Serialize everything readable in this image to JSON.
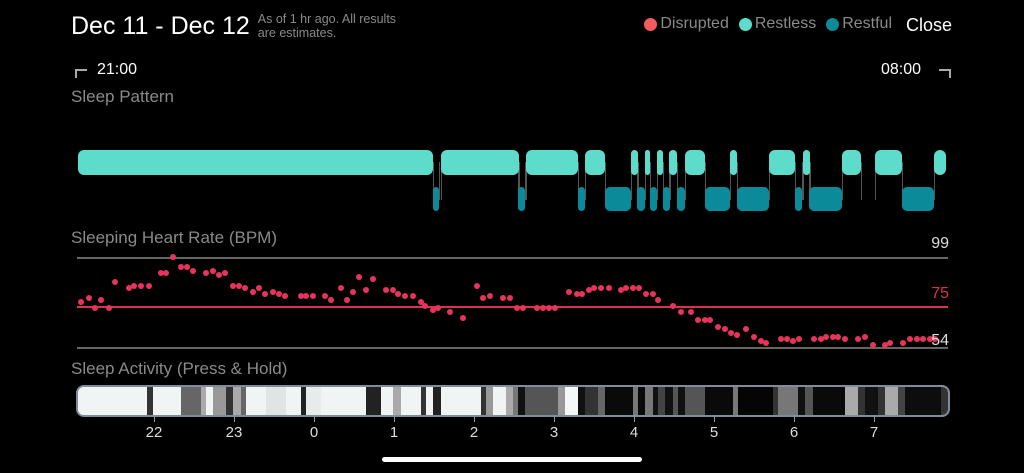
{
  "header": {
    "title": "Dec 11 - Dec 12",
    "subtitle": "As of 1 hr ago. All results are estimates.",
    "close_label": "Close"
  },
  "legend": [
    {
      "label": "Disrupted",
      "color": "#f25c5c"
    },
    {
      "label": "Restless",
      "color": "#5ddccb"
    },
    {
      "label": "Restful",
      "color": "#0b8a99"
    }
  ],
  "time_range": {
    "start": "21:00",
    "end": "08:00"
  },
  "sleep_pattern": {
    "title": "Sleep Pattern",
    "restless_color": "#5ddccb",
    "restful_color": "#0b8a99",
    "restless_minutes": [
      [
        3,
        269
      ],
      [
        275,
        334
      ],
      [
        339,
        378
      ],
      [
        383,
        398
      ],
      [
        418,
        423
      ],
      [
        428,
        432
      ],
      [
        437,
        442
      ],
      [
        446,
        452
      ],
      [
        458,
        473
      ],
      [
        492,
        497
      ],
      [
        521,
        541
      ],
      [
        547,
        552
      ],
      [
        576,
        590
      ],
      [
        601,
        621
      ],
      [
        645,
        654
      ]
    ],
    "restful_minutes": [
      [
        269,
        274
      ],
      [
        333,
        338
      ],
      [
        378,
        383
      ],
      [
        398,
        418
      ],
      [
        422,
        428
      ],
      [
        432,
        437
      ],
      [
        442,
        447
      ],
      [
        452,
        458
      ],
      [
        473,
        492
      ],
      [
        497,
        521
      ],
      [
        541,
        546
      ],
      [
        551,
        576
      ],
      [
        621,
        645
      ]
    ]
  },
  "heart_rate": {
    "title": "Sleeping Heart Rate (BPM)",
    "max_label": "99",
    "avg_label": "75",
    "min_label": "54",
    "max": 99,
    "avg": 75,
    "min": 54,
    "dot_color": "#e8345a",
    "avg_color": "#d8324e",
    "points_min_bpm": [
      [
        5,
        77
      ],
      [
        11,
        79
      ],
      [
        16,
        74
      ],
      [
        20,
        78
      ],
      [
        26,
        74
      ],
      [
        31,
        87
      ],
      [
        41,
        84
      ],
      [
        45,
        85
      ],
      [
        50,
        85
      ],
      [
        56,
        85
      ],
      [
        65,
        91
      ],
      [
        69,
        91
      ],
      [
        74,
        99
      ],
      [
        80,
        94
      ],
      [
        85,
        94
      ],
      [
        89,
        92
      ],
      [
        99,
        91
      ],
      [
        104,
        92
      ],
      [
        109,
        90
      ],
      [
        113,
        91
      ],
      [
        119,
        85
      ],
      [
        124,
        85
      ],
      [
        128,
        84
      ],
      [
        134,
        82
      ],
      [
        139,
        84
      ],
      [
        143,
        81
      ],
      [
        149,
        82
      ],
      [
        154,
        81
      ],
      [
        158,
        80
      ],
      [
        170,
        80
      ],
      [
        174,
        80
      ],
      [
        179,
        80
      ],
      [
        188,
        80
      ],
      [
        193,
        78
      ],
      [
        200,
        84
      ],
      [
        205,
        78
      ],
      [
        209,
        82
      ],
      [
        214,
        89
      ],
      [
        219,
        83
      ],
      [
        224,
        88
      ],
      [
        234,
        83
      ],
      [
        239,
        83
      ],
      [
        243,
        81
      ],
      [
        248,
        80
      ],
      [
        254,
        80
      ],
      [
        260,
        77
      ],
      [
        263,
        75
      ],
      [
        269,
        73
      ],
      [
        273,
        74
      ],
      [
        282,
        72
      ],
      [
        292,
        69
      ],
      [
        302,
        85
      ],
      [
        307,
        79
      ],
      [
        312,
        80
      ],
      [
        322,
        79
      ],
      [
        327,
        79
      ],
      [
        332,
        74
      ],
      [
        337,
        74
      ],
      [
        347,
        74
      ],
      [
        352,
        74
      ],
      [
        356,
        74
      ],
      [
        361,
        74
      ],
      [
        371,
        82
      ],
      [
        377,
        81
      ],
      [
        381,
        81
      ],
      [
        386,
        83
      ],
      [
        390,
        84
      ],
      [
        395,
        84
      ],
      [
        401,
        84
      ],
      [
        410,
        83
      ],
      [
        414,
        84
      ],
      [
        419,
        84
      ],
      [
        424,
        84
      ],
      [
        429,
        81
      ],
      [
        434,
        81
      ],
      [
        438,
        78
      ],
      [
        449,
        75
      ],
      [
        455,
        72
      ],
      [
        463,
        72
      ],
      [
        468,
        68
      ],
      [
        473,
        68
      ],
      [
        477,
        68
      ],
      [
        483,
        64
      ],
      [
        488,
        63
      ],
      [
        493,
        61
      ],
      [
        497,
        60
      ],
      [
        504,
        63
      ],
      [
        510,
        59
      ],
      [
        515,
        57
      ],
      [
        519,
        56
      ],
      [
        530,
        58
      ],
      [
        535,
        58
      ],
      [
        539,
        57
      ],
      [
        544,
        58
      ],
      [
        555,
        58
      ],
      [
        560,
        58
      ],
      [
        564,
        59
      ],
      [
        569,
        59
      ],
      [
        573,
        59
      ],
      [
        578,
        58
      ],
      [
        588,
        58
      ],
      [
        593,
        59
      ],
      [
        599,
        55
      ],
      [
        608,
        55
      ],
      [
        612,
        56
      ],
      [
        622,
        56
      ],
      [
        627,
        58
      ],
      [
        632,
        58
      ],
      [
        637,
        58
      ],
      [
        642,
        58
      ],
      [
        646,
        58
      ]
    ]
  },
  "sleep_activity": {
    "title": "Sleep Activity (Press & Hold)",
    "end_minute": 656,
    "segments": [
      [
        2,
        "#f0f4f5"
      ],
      [
        55,
        "#333333"
      ],
      [
        59,
        "#f0f4f5"
      ],
      [
        80,
        "#666666"
      ],
      [
        95,
        "#aaaaaa"
      ],
      [
        99,
        "#f0f4f5"
      ],
      [
        104,
        "#999999"
      ],
      [
        114,
        "#333333"
      ],
      [
        119,
        "#aaaaaa"
      ],
      [
        125,
        "#666666"
      ],
      [
        129,
        "#f0f4f5"
      ],
      [
        144,
        "#e0e4e4"
      ],
      [
        159,
        "#f0f4f5"
      ],
      [
        170,
        "#222222"
      ],
      [
        174,
        "#e8ebeb"
      ],
      [
        185,
        "#f0f4f5"
      ],
      [
        219,
        "#222222"
      ],
      [
        230,
        "#f0f4f5"
      ],
      [
        239,
        "#aaaaaa"
      ],
      [
        245,
        "#f0f4f5"
      ],
      [
        260,
        "#333333"
      ],
      [
        264,
        "#f0f4f5"
      ],
      [
        269,
        "#222222"
      ],
      [
        275,
        "#f0f4f5"
      ],
      [
        305,
        "#333333"
      ],
      [
        309,
        "#999999"
      ],
      [
        314,
        "#f0f4f5"
      ],
      [
        324,
        "#aaaaaa"
      ],
      [
        329,
        "#777777"
      ],
      [
        333,
        "#111111"
      ],
      [
        338,
        "#555555"
      ],
      [
        363,
        "#999999"
      ],
      [
        368,
        "#f4f8f8"
      ],
      [
        378,
        "#111111"
      ],
      [
        383,
        "#333333"
      ],
      [
        393,
        "#666666"
      ],
      [
        398,
        "#0a0a0a"
      ],
      [
        419,
        "#777777"
      ],
      [
        423,
        "#0a0a0a"
      ],
      [
        428,
        "#777777"
      ],
      [
        434,
        "#111111"
      ],
      [
        438,
        "#444444"
      ],
      [
        443,
        "#111111"
      ],
      [
        449,
        "#555555"
      ],
      [
        453,
        "#111111"
      ],
      [
        458,
        "#555555"
      ],
      [
        473,
        "#0a0a0a"
      ],
      [
        494,
        "#777777"
      ],
      [
        498,
        "#050505"
      ],
      [
        524,
        "#333333"
      ],
      [
        528,
        "#777777"
      ],
      [
        543,
        "#111111"
      ],
      [
        548,
        "#555555"
      ],
      [
        554,
        "#0a0a0a"
      ],
      [
        578,
        "#aaaaaa"
      ],
      [
        588,
        "#333333"
      ],
      [
        593,
        "#111111"
      ],
      [
        603,
        "#333333"
      ],
      [
        608,
        "#aaaaaa"
      ],
      [
        618,
        "#444444"
      ],
      [
        623,
        "#0d0d0d"
      ],
      [
        650,
        "#333333"
      ]
    ],
    "hour_ticks": [
      {
        "label": "22",
        "minute": 60
      },
      {
        "label": "23",
        "minute": 120
      },
      {
        "label": "0",
        "minute": 180
      },
      {
        "label": "1",
        "minute": 240
      },
      {
        "label": "2",
        "minute": 300
      },
      {
        "label": "3",
        "minute": 360
      },
      {
        "label": "4",
        "minute": 420
      },
      {
        "label": "5",
        "minute": 480
      },
      {
        "label": "6",
        "minute": 540
      },
      {
        "label": "7",
        "minute": 600
      }
    ]
  }
}
